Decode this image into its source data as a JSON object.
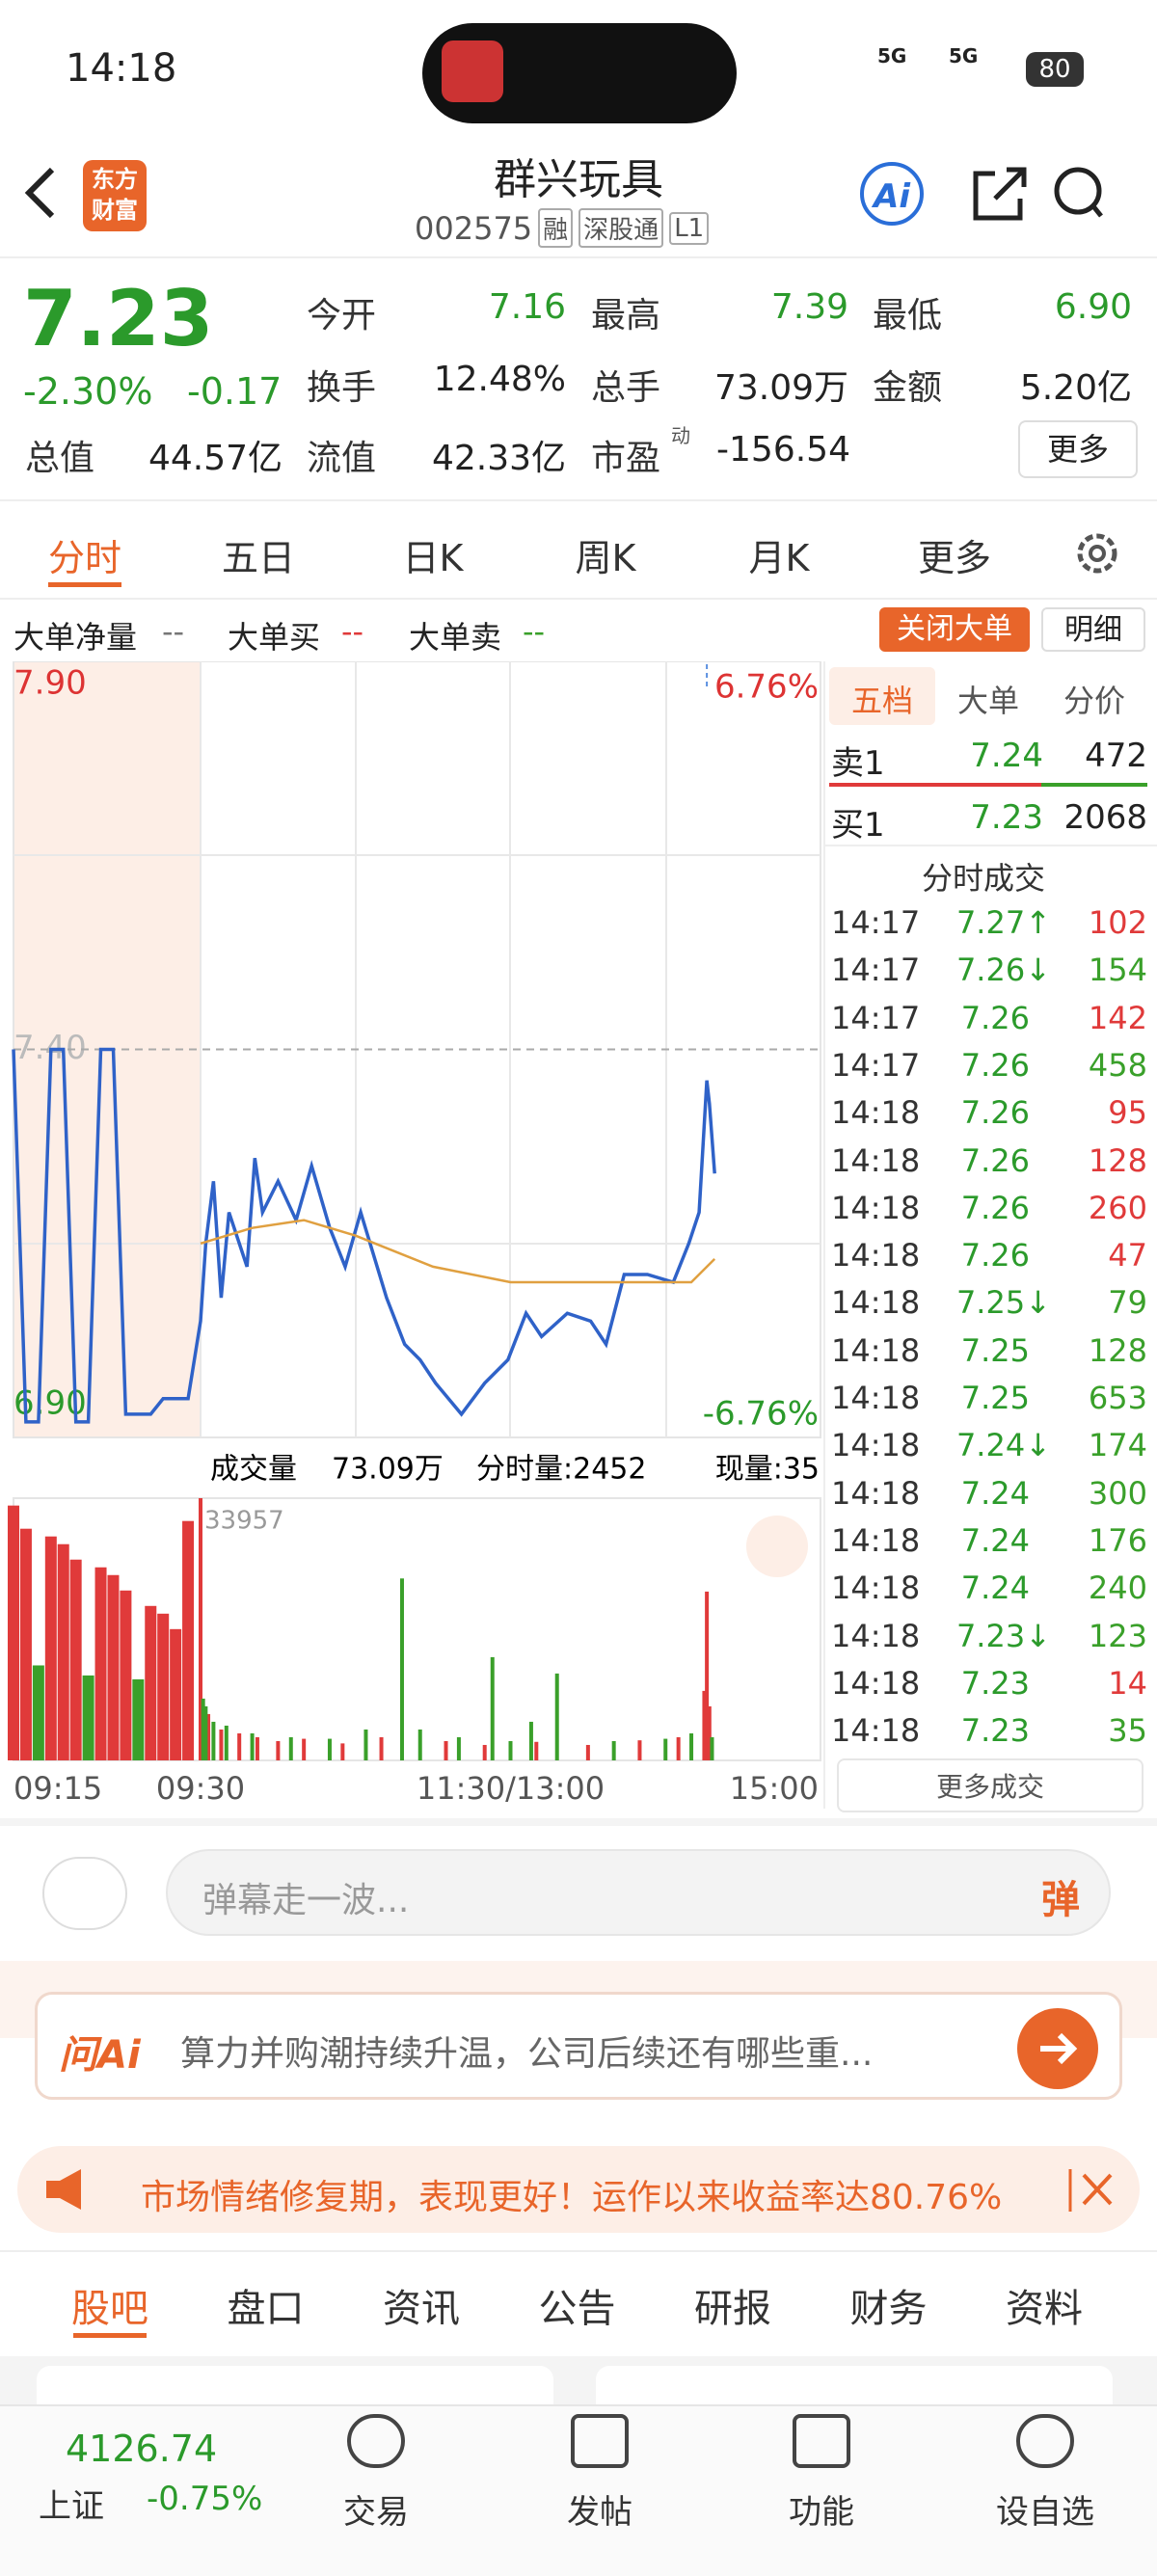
{
  "status_bar": {
    "time": "14:18",
    "signal_a": "5G",
    "signal_b": "5G",
    "battery": "80"
  },
  "header": {
    "logo": [
      "东方",
      "财富"
    ],
    "title": "群兴玩具",
    "code": "002575",
    "tags": [
      "融",
      "深股通",
      "L1"
    ],
    "ai": "Ai"
  },
  "quote": {
    "price": "7.23",
    "change_pct": "-2.30%",
    "change": "-0.17",
    "stats": [
      [
        "今开",
        "7.16"
      ],
      [
        "最高",
        "7.39"
      ],
      [
        "最低",
        "6.90"
      ],
      [
        "换手",
        "12.48%"
      ],
      [
        "总手",
        "73.09万"
      ],
      [
        "金额",
        "5.20亿"
      ],
      [
        "总值",
        "44.57亿"
      ],
      [
        "流值",
        "42.33亿"
      ],
      [
        "市盈",
        "-156.54"
      ]
    ],
    "pe_sup": "动",
    "more": "更多"
  },
  "tabs": [
    "分时",
    "五日",
    "日K",
    "周K",
    "月K",
    "更多"
  ],
  "big_order": {
    "items": [
      [
        "大单净量",
        "--"
      ],
      [
        "大单买",
        "--"
      ],
      [
        "大单卖",
        "--"
      ]
    ],
    "close": "关闭大单",
    "detail": "明细"
  },
  "chart_data": {
    "type": "line",
    "ylim": [
      6.9,
      7.9
    ],
    "yticks": [
      {
        "value": 7.9,
        "label": "7.90"
      },
      {
        "value": 7.4,
        "label": "7.40"
      },
      {
        "value": 6.9,
        "label": "6.90"
      }
    ],
    "pct_top": "6.76%",
    "pct_bottom": "-6.76%",
    "marker": "S",
    "xticks": [
      {
        "value": -15,
        "label": "09:15"
      },
      {
        "value": 0,
        "label": "09:30"
      },
      {
        "value": 120,
        "label": "11:30/13:00"
      },
      {
        "value": 240,
        "label": "15:00"
      }
    ],
    "xlim": [
      -15,
      240
    ],
    "series": [
      {
        "name": "price",
        "color": "#2f62c8",
        "x": [
          -15,
          -14,
          -13,
          -12,
          -11,
          -10,
          -9,
          -8,
          -7,
          -6,
          -4,
          -3,
          -1,
          0,
          2,
          5,
          8,
          11,
          18,
          21,
          24,
          30,
          37,
          43,
          50,
          56,
          62,
          72,
          79,
          85,
          91,
          101,
          110,
          119,
          126,
          132,
          142,
          151,
          157,
          164,
          173,
          183,
          189,
          193,
          196,
          197,
          199
        ],
        "values": [
          7.4,
          6.92,
          6.92,
          7.4,
          7.4,
          6.92,
          6.92,
          7.4,
          7.4,
          6.93,
          6.93,
          6.95,
          6.95,
          7.05,
          7.15,
          7.23,
          7.08,
          7.19,
          7.12,
          7.26,
          7.19,
          7.23,
          7.18,
          7.25,
          7.17,
          7.12,
          7.19,
          7.08,
          7.02,
          7.0,
          6.97,
          6.93,
          6.97,
          7.0,
          7.06,
          7.03,
          7.06,
          7.05,
          7.02,
          7.11,
          7.11,
          7.1,
          7.15,
          7.19,
          7.36,
          7.33,
          7.24
        ]
      },
      {
        "name": "average",
        "color": "#e0a040",
        "x": [
          0,
          20,
          40,
          60,
          90,
          120,
          160,
          190,
          199
        ],
        "values": [
          7.15,
          7.17,
          7.18,
          7.16,
          7.12,
          7.1,
          7.1,
          7.1,
          7.13
        ]
      }
    ]
  },
  "volume_data": {
    "type": "bar",
    "title": "成交量",
    "total": "73.09万",
    "period": "分时量:2452",
    "current": "现量:35",
    "ylim": [
      0,
      33957
    ],
    "series": [
      {
        "name": "up",
        "color": "#e03a3a",
        "x": [
          -15,
          -14,
          -12,
          -11,
          -10,
          -8,
          -7,
          -6,
          -4,
          -3,
          -2,
          -1,
          0,
          3,
          8,
          15,
          22,
          30,
          40,
          55,
          70,
          95,
          110,
          130,
          150,
          170,
          185,
          195,
          196,
          197
        ],
        "values": [
          33000,
          30000,
          29000,
          28000,
          26000,
          25000,
          24000,
          22000,
          20000,
          19000,
          17000,
          31000,
          33957,
          6000,
          4000,
          3500,
          3000,
          2500,
          2800,
          2200,
          3000,
          2500,
          2000,
          2400,
          2000,
          2600,
          3000,
          9000,
          21860,
          7000
        ]
      },
      {
        "name": "down",
        "color": "#3aa02a",
        "x": [
          -13,
          -9,
          -5,
          1,
          2,
          5,
          10,
          20,
          35,
          50,
          64,
          78,
          85,
          100,
          113,
          120,
          128,
          138,
          160,
          180,
          190,
          198
        ],
        "values": [
          12300,
          11000,
          10500,
          8000,
          7000,
          5000,
          4500,
          3500,
          3000,
          2800,
          4000,
          23560,
          4000,
          3000,
          13370,
          2500,
          5000,
          11250,
          2500,
          2800,
          3500,
          3000
        ]
      }
    ]
  },
  "order_book": {
    "tabs": [
      "五档",
      "大单",
      "分价"
    ],
    "rows": [
      [
        "卖1",
        "7.24",
        "472"
      ],
      [
        "买1",
        "7.23",
        "2068"
      ]
    ],
    "trades_title": "分时成交",
    "trades": [
      [
        "14:17",
        "7.27↑",
        "102",
        "#e03a3a"
      ],
      [
        "14:17",
        "7.26↓",
        "154",
        "#3aa02a"
      ],
      [
        "14:17",
        "7.26",
        "142",
        "#e03a3a"
      ],
      [
        "14:17",
        "7.26",
        "458",
        "#3aa02a"
      ],
      [
        "14:18",
        "7.26",
        "95",
        "#e03a3a"
      ],
      [
        "14:18",
        "7.26",
        "128",
        "#e03a3a"
      ],
      [
        "14:18",
        "7.26",
        "260",
        "#e03a3a"
      ],
      [
        "14:18",
        "7.26",
        "47",
        "#e03a3a"
      ],
      [
        "14:18",
        "7.25↓",
        "79",
        "#3aa02a"
      ],
      [
        "14:18",
        "7.25",
        "128",
        "#3aa02a"
      ],
      [
        "14:18",
        "7.25",
        "653",
        "#3aa02a"
      ],
      [
        "14:18",
        "7.24↓",
        "174",
        "#3aa02a"
      ],
      [
        "14:18",
        "7.24",
        "300",
        "#3aa02a"
      ],
      [
        "14:18",
        "7.24",
        "176",
        "#3aa02a"
      ],
      [
        "14:18",
        "7.24",
        "240",
        "#3aa02a"
      ],
      [
        "14:18",
        "7.23↓",
        "123",
        "#3aa02a"
      ],
      [
        "14:18",
        "7.23",
        "14",
        "#e03a3a"
      ],
      [
        "14:18",
        "7.23",
        "35",
        "#3aa02a"
      ]
    ],
    "more": "更多成交"
  },
  "comment": {
    "placeholder": "弹幕走一波...",
    "button": "弹"
  },
  "ask_ai": {
    "label": "问Ai",
    "question": "算力并购潮持续升温，公司后续还有哪些重..."
  },
  "banner": {
    "text": "市场情绪修复期，表现更好！运作以来收益率达80.76%"
  },
  "section_tabs": [
    "股吧",
    "盘口",
    "资讯",
    "公告",
    "研报",
    "财务",
    "资料"
  ],
  "bottom_nav": {
    "index_value": "4126.74",
    "index_name": "上证",
    "index_change": "-0.75%",
    "items": [
      "交易",
      "发帖",
      "功能",
      "设自选"
    ]
  }
}
